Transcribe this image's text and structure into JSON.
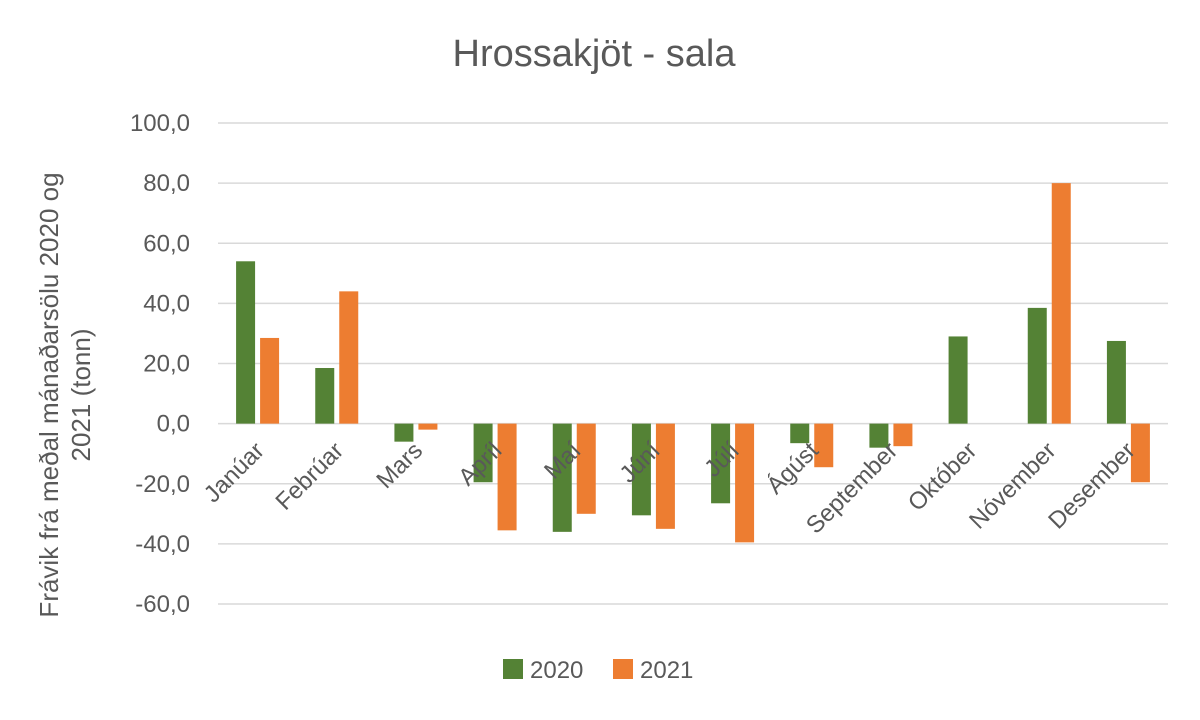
{
  "chart_data": {
    "type": "bar",
    "title": "Hrossakjöt - sala",
    "ylabel": "Frávik frá meðal mánaðarsölu 2020 og 2021 (tonn)",
    "ylabel_lines": [
      "Frávik frá meðal mánaðarsölu 2020 og",
      "2021 (tonn)"
    ],
    "xlabel": "",
    "ylim": [
      -60,
      100
    ],
    "yticks": [
      100,
      80,
      60,
      40,
      20,
      0,
      -20,
      -40,
      -60
    ],
    "ytick_labels": [
      "100,0",
      "80,0",
      "60,0",
      "40,0",
      "20,0",
      "0,0",
      "-20,0",
      "-40,0",
      "-60,0"
    ],
    "categories": [
      "Janúar",
      "Febrúar",
      "Mars",
      "Apríl",
      "Maí",
      "Júní",
      "Júlí",
      "Ágúst",
      "September",
      "Október",
      "Nóvember",
      "Desember"
    ],
    "series": [
      {
        "name": "2020",
        "color": "#548235",
        "values": [
          54.0,
          18.5,
          -6.0,
          -19.5,
          -36.0,
          -30.5,
          -26.5,
          -6.5,
          -8.0,
          29.0,
          38.5,
          27.5
        ]
      },
      {
        "name": "2021",
        "color": "#ED7D31",
        "values": [
          28.5,
          44.0,
          -2.0,
          -35.5,
          -30.0,
          -35.0,
          -39.5,
          -14.5,
          -7.5,
          0.0,
          80.0,
          -19.5
        ]
      }
    ],
    "grid": true,
    "legend_position": "bottom"
  }
}
